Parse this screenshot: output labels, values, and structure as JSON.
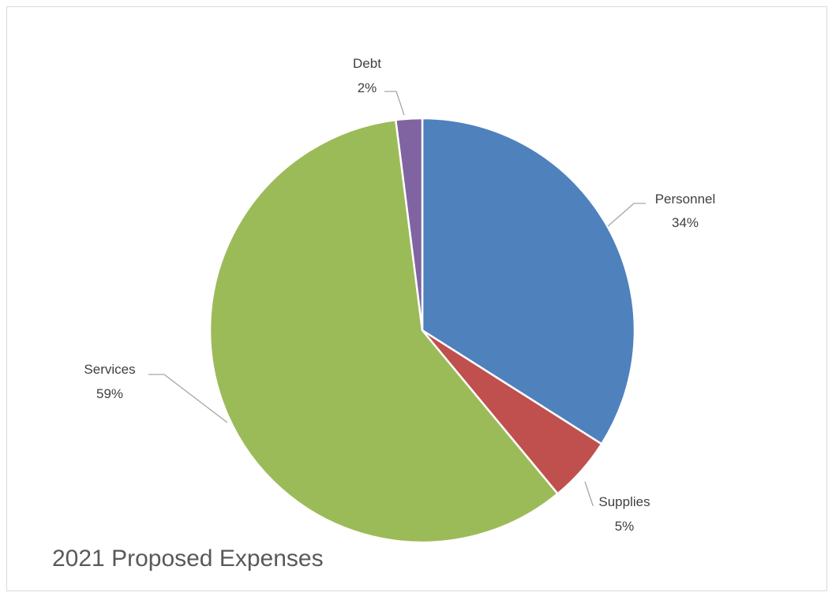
{
  "chart_data": {
    "type": "pie",
    "title": "2021 Proposed Expenses",
    "start_angle_deg": 0,
    "direction": "clockwise",
    "slices": [
      {
        "name": "Personnel",
        "label": "34%",
        "value": 34,
        "color": "#4f81bd"
      },
      {
        "name": "Supplies",
        "label": "5%",
        "value": 5,
        "color": "#c0504d"
      },
      {
        "name": "Services",
        "label": "59%",
        "value": 59,
        "color": "#9bbb59"
      },
      {
        "name": "Debt",
        "label": "2%",
        "value": 2,
        "color": "#8064a2"
      }
    ],
    "legend": "none",
    "data_labels": "outside-with-leader-lines"
  }
}
